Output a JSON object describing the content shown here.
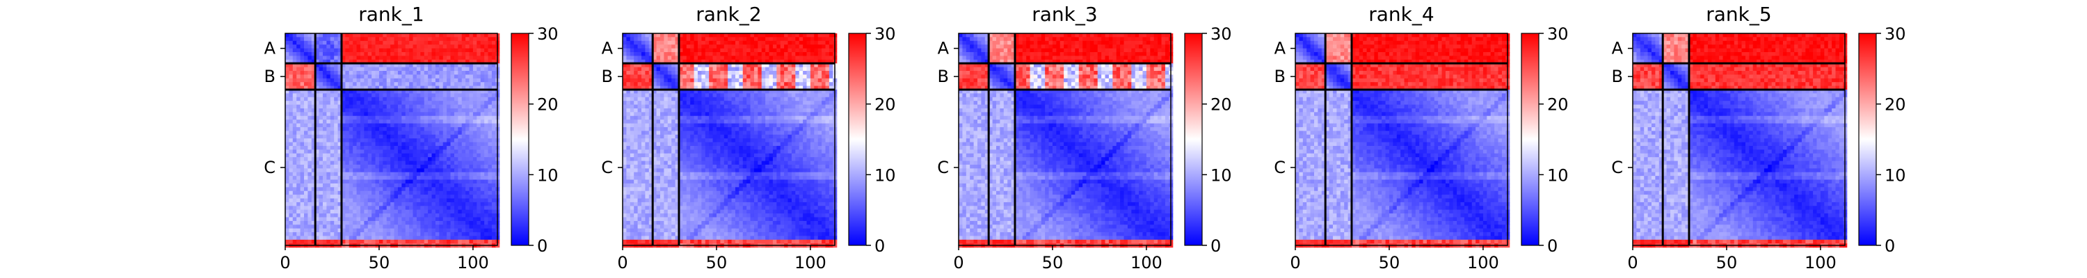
{
  "figure": {
    "panel_titles": [
      "rank_1",
      "rank_2",
      "rank_3",
      "rank_4",
      "rank_5"
    ]
  },
  "chart_data": {
    "type": "heatmap",
    "description_free": true,
    "x_ticks": [
      0,
      50,
      100
    ],
    "xlim": [
      0,
      113
    ],
    "ylim": [
      113,
      0
    ],
    "chain_labels": [
      "A",
      "B",
      "C"
    ],
    "chain_boundaries": [
      0,
      16,
      30,
      113
    ],
    "colorbar": {
      "ticks": [
        0,
        10,
        20,
        30
      ],
      "range": [
        0,
        30
      ],
      "colors": [
        "#0000ff",
        "#ffffff",
        "#ff0000"
      ]
    },
    "panels": [
      {
        "title": "rank_1",
        "chainA_rowB": 6,
        "chainB_rowA": 24,
        "chainB_rowC": 9,
        "chainA_colC": 28
      },
      {
        "title": "rank_2",
        "chainA_rowB": 22,
        "chainB_rowA": 26,
        "chainB_rowC": 17,
        "chainA_colC": 29
      },
      {
        "title": "rank_3",
        "chainA_rowB": 22,
        "chainB_rowA": 26,
        "chainB_rowC": 17,
        "chainA_colC": 29
      },
      {
        "title": "rank_4",
        "chainA_rowB": 22,
        "chainB_rowA": 26,
        "chainB_rowC": 27,
        "chainA_colC": 29
      },
      {
        "title": "rank_5",
        "chainA_rowB": 22,
        "chainB_rowA": 26,
        "chainB_rowC": 27,
        "chainA_colC": 29
      }
    ]
  }
}
